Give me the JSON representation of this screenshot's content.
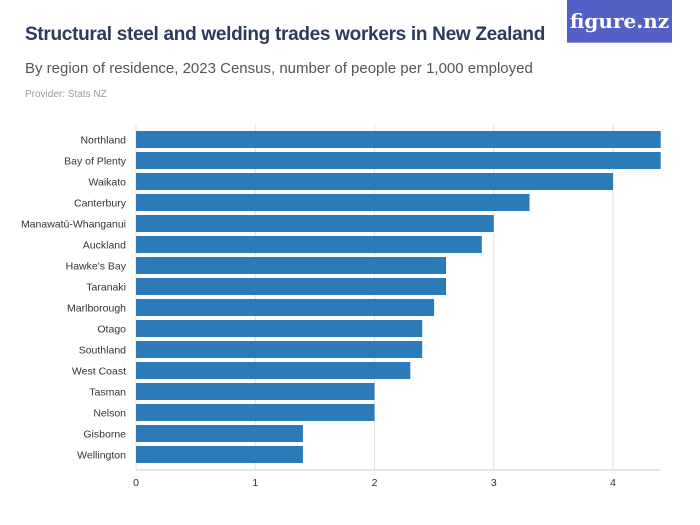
{
  "header": {
    "title": "Structural steel and welding trades workers in New Zealand",
    "subtitle": "By region of residence, 2023 Census, number of people per 1,000 employed",
    "provider": "Provider: Stats NZ",
    "logo": "figure.nz"
  },
  "colors": {
    "bar": "#2b7bb9",
    "grid": "#e0e0e0",
    "logo_bg": "#5361c6"
  },
  "chart_data": {
    "type": "bar",
    "orientation": "horizontal",
    "title": "Structural steel and welding trades workers in New Zealand",
    "subtitle": "By region of residence, 2023 Census, number of people per 1,000 employed",
    "categories": [
      "Northland",
      "Bay of Plenty",
      "Waikato",
      "Canterbury",
      "Manawatū-Whanganui",
      "Auckland",
      "Hawke's Bay",
      "Taranaki",
      "Marlborough",
      "Otago",
      "Southland",
      "West Coast",
      "Tasman",
      "Nelson",
      "Gisborne",
      "Wellington"
    ],
    "values": [
      4.4,
      4.4,
      4.0,
      3.3,
      3.0,
      2.9,
      2.6,
      2.6,
      2.5,
      2.4,
      2.4,
      2.3,
      2.0,
      2.0,
      1.4,
      1.4
    ],
    "xlim": [
      0,
      4.4
    ],
    "xticks": [
      0,
      1,
      2,
      3,
      4
    ],
    "grid": true
  }
}
